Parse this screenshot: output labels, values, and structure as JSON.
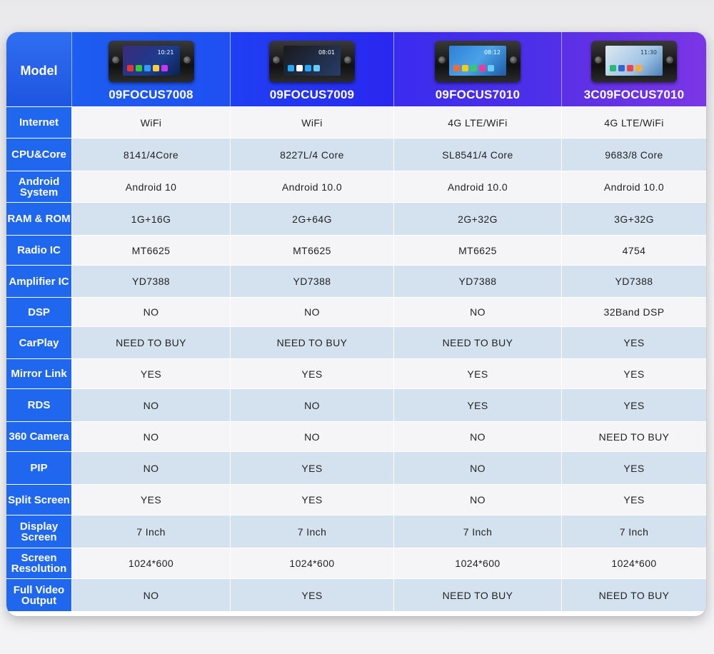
{
  "header": {
    "model_label": "Model",
    "models": [
      "09FOCUS7008",
      "09FOCUS7009",
      "09FOCUS7010",
      "3C09FOCUS7010"
    ],
    "screen_clocks": [
      "10:21",
      "08:01",
      "08:12",
      "11:30"
    ]
  },
  "rows": [
    {
      "label": "Internet",
      "values": [
        "WiFi",
        "WiFi",
        "4G LTE/WiFi",
        "4G LTE/WiFi"
      ]
    },
    {
      "label": "CPU&Core",
      "values": [
        "8141/4Core",
        "8227L/4 Core",
        "SL8541/4 Core",
        "9683/8 Core"
      ]
    },
    {
      "label": "Android System",
      "values": [
        "Android 10",
        "Android 10.0",
        "Android 10.0",
        "Android 10.0"
      ]
    },
    {
      "label": "RAM & ROM",
      "values": [
        "1G+16G",
        "2G+64G",
        "2G+32G",
        "3G+32G"
      ]
    },
    {
      "label": "Radio IC",
      "values": [
        "MT6625",
        "MT6625",
        "MT6625",
        "4754"
      ]
    },
    {
      "label": "Amplifier IC",
      "values": [
        "YD7388",
        "YD7388",
        "YD7388",
        "YD7388"
      ]
    },
    {
      "label": "DSP",
      "values": [
        "NO",
        "NO",
        "NO",
        "32Band DSP"
      ]
    },
    {
      "label": "CarPlay",
      "values": [
        "NEED TO BUY",
        "NEED TO BUY",
        "NEED TO BUY",
        "YES"
      ]
    },
    {
      "label": "Mirror Link",
      "values": [
        "YES",
        "YES",
        "YES",
        "YES"
      ]
    },
    {
      "label": "RDS",
      "values": [
        "NO",
        "NO",
        "YES",
        "YES"
      ]
    },
    {
      "label": "360 Camera",
      "values": [
        "NO",
        "NO",
        "NO",
        "NEED TO BUY"
      ]
    },
    {
      "label": "PIP",
      "values": [
        "NO",
        "YES",
        "NO",
        "YES"
      ]
    },
    {
      "label": "Split Screen",
      "values": [
        "YES",
        "YES",
        "NO",
        "YES"
      ]
    },
    {
      "label": "Display Screen",
      "values": [
        "7 Inch",
        "7 Inch",
        "7 Inch",
        "7 Inch"
      ]
    },
    {
      "label": "Screen Resolution",
      "values": [
        "1024*600",
        "1024*600",
        "1024*600",
        "1024*600"
      ]
    },
    {
      "label": "Full Video Output",
      "values": [
        "NO",
        "YES",
        "NEED TO BUY",
        "NEED TO BUY"
      ]
    }
  ],
  "colors": {
    "label_blue": "#2067f0",
    "row_light": "#f5f5f7",
    "row_blue": "#d4e2ef",
    "header_gradient_start": "#1d5df0",
    "header_gradient_end": "#7a36e6"
  }
}
